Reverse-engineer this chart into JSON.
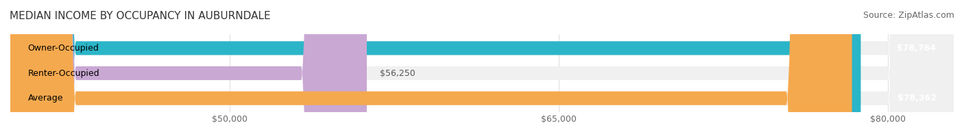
{
  "title": "MEDIAN INCOME BY OCCUPANCY IN AUBURNDALE",
  "source": "Source: ZipAtlas.com",
  "categories": [
    "Owner-Occupied",
    "Renter-Occupied",
    "Average"
  ],
  "values": [
    78764,
    56250,
    78362
  ],
  "bar_colors": [
    "#2bb5c8",
    "#c9a8d4",
    "#f5a94e"
  ],
  "bar_bg_color": "#f0f0f0",
  "value_labels": [
    "$78,764",
    "$56,250",
    "$78,362"
  ],
  "xmin": 40000,
  "xmax": 83000,
  "xticks": [
    50000,
    65000,
    80000
  ],
  "xtick_labels": [
    "$50,000",
    "$65,000",
    "$80,000"
  ],
  "title_fontsize": 11,
  "source_fontsize": 9,
  "label_fontsize": 9,
  "value_fontsize": 9,
  "bar_height": 0.55,
  "fig_bg_color": "#ffffff",
  "grid_color": "#e0e0e0"
}
